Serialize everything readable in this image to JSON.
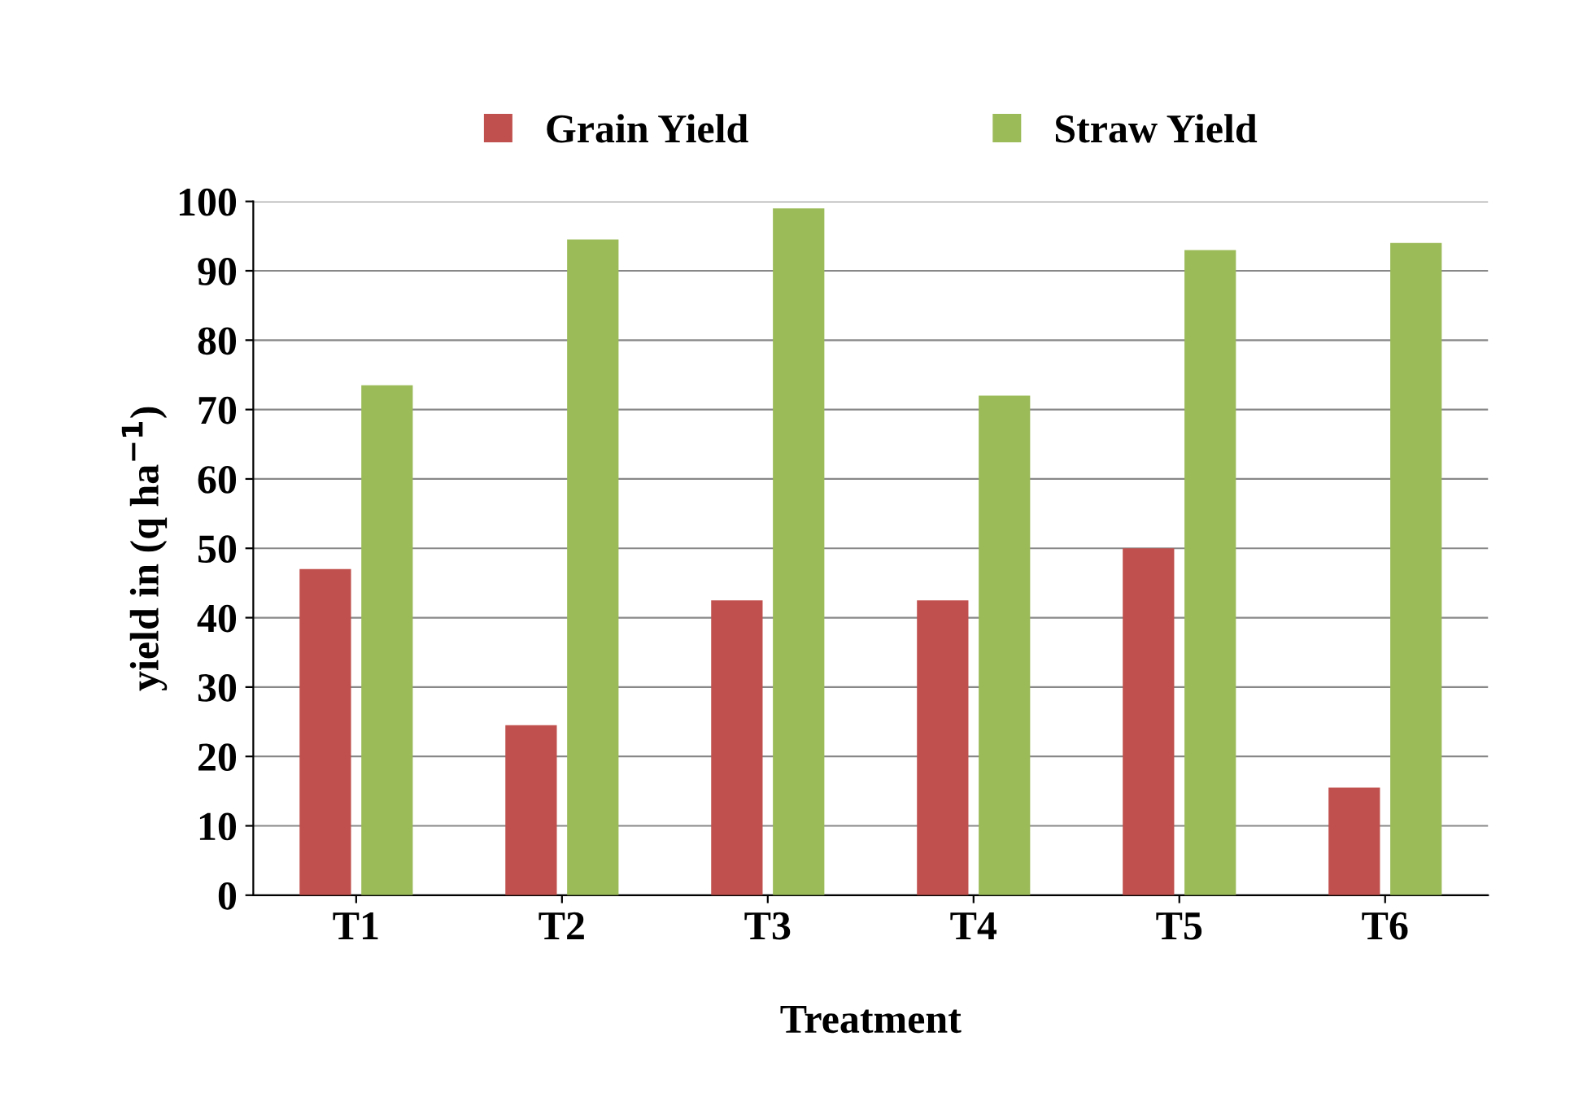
{
  "chart_data": {
    "type": "bar",
    "xlabel": "Treatment",
    "ylabel": "yield in (q ha$^{−1}$)",
    "categories": [
      "T1",
      "T2",
      "T3",
      "T4",
      "T5",
      "T6"
    ],
    "series": [
      {
        "name": "Grain Yield",
        "color": "#c0504d",
        "values": [
          47,
          24.5,
          42.5,
          42.5,
          50,
          15.5
        ]
      },
      {
        "name": "Straw Yield",
        "color": "#9bbb59",
        "values": [
          73.5,
          94.5,
          99,
          72,
          93,
          94
        ]
      }
    ],
    "ylim": [
      0,
      100
    ],
    "yticks": [
      0,
      10,
      20,
      30,
      40,
      50,
      60,
      70,
      80,
      90,
      100
    ],
    "grid": "y",
    "legend": "top"
  }
}
